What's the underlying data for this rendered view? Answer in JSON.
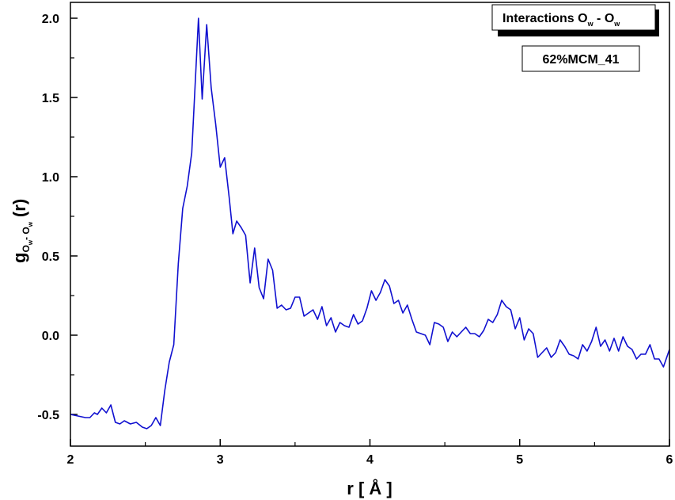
{
  "chart_data": {
    "type": "line",
    "xlabel": "r [ Å ]",
    "ylabel": {
      "main": "g",
      "sub1": "O",
      "subsub1": "w",
      "mid": "- O",
      "subsub2": "w",
      "tail": "(r)"
    },
    "xlim": [
      2,
      6
    ],
    "ylim": [
      -0.7,
      2.1
    ],
    "x_ticks": [
      "2",
      "3",
      "4",
      "5",
      "6"
    ],
    "y_ticks": [
      "-0.5",
      "0.0",
      "0.5",
      "1.0",
      "1.5",
      "2.0"
    ],
    "grid": false,
    "legend": {
      "position": "top-right",
      "title": {
        "main": "Interactions O",
        "sub1": "w",
        "mid": " - O",
        "sub2": "w"
      },
      "label": "62%MCM_41"
    },
    "series": [
      {
        "color": "#1010d0",
        "points": [
          [
            2.0,
            -0.5
          ],
          [
            2.05,
            -0.51
          ],
          [
            2.1,
            -0.52
          ],
          [
            2.13,
            -0.52
          ],
          [
            2.16,
            -0.49
          ],
          [
            2.18,
            -0.5
          ],
          [
            2.21,
            -0.46
          ],
          [
            2.24,
            -0.49
          ],
          [
            2.27,
            -0.44
          ],
          [
            2.3,
            -0.55
          ],
          [
            2.33,
            -0.56
          ],
          [
            2.36,
            -0.54
          ],
          [
            2.4,
            -0.56
          ],
          [
            2.44,
            -0.55
          ],
          [
            2.48,
            -0.58
          ],
          [
            2.51,
            -0.59
          ],
          [
            2.54,
            -0.57
          ],
          [
            2.57,
            -0.52
          ],
          [
            2.6,
            -0.57
          ],
          [
            2.63,
            -0.35
          ],
          [
            2.66,
            -0.17
          ],
          [
            2.69,
            -0.06
          ],
          [
            2.72,
            0.45
          ],
          [
            2.75,
            0.8
          ],
          [
            2.78,
            0.94
          ],
          [
            2.81,
            1.15
          ],
          [
            2.855,
            2.0
          ],
          [
            2.88,
            1.49
          ],
          [
            2.91,
            1.96
          ],
          [
            2.94,
            1.56
          ],
          [
            2.97,
            1.33
          ],
          [
            3.0,
            1.06
          ],
          [
            3.03,
            1.12
          ],
          [
            3.06,
            0.87
          ],
          [
            3.085,
            0.64
          ],
          [
            3.11,
            0.72
          ],
          [
            3.14,
            0.68
          ],
          [
            3.17,
            0.63
          ],
          [
            3.2,
            0.33
          ],
          [
            3.23,
            0.55
          ],
          [
            3.26,
            0.3
          ],
          [
            3.29,
            0.23
          ],
          [
            3.32,
            0.48
          ],
          [
            3.35,
            0.41
          ],
          [
            3.38,
            0.17
          ],
          [
            3.41,
            0.19
          ],
          [
            3.44,
            0.16
          ],
          [
            3.47,
            0.17
          ],
          [
            3.5,
            0.24
          ],
          [
            3.53,
            0.24
          ],
          [
            3.56,
            0.12
          ],
          [
            3.59,
            0.14
          ],
          [
            3.62,
            0.16
          ],
          [
            3.65,
            0.1
          ],
          [
            3.68,
            0.18
          ],
          [
            3.71,
            0.06
          ],
          [
            3.74,
            0.11
          ],
          [
            3.77,
            0.02
          ],
          [
            3.8,
            0.08
          ],
          [
            3.83,
            0.06
          ],
          [
            3.86,
            0.05
          ],
          [
            3.89,
            0.13
          ],
          [
            3.92,
            0.07
          ],
          [
            3.95,
            0.09
          ],
          [
            3.98,
            0.17
          ],
          [
            4.01,
            0.28
          ],
          [
            4.04,
            0.22
          ],
          [
            4.07,
            0.27
          ],
          [
            4.1,
            0.35
          ],
          [
            4.13,
            0.31
          ],
          [
            4.16,
            0.2
          ],
          [
            4.19,
            0.22
          ],
          [
            4.22,
            0.14
          ],
          [
            4.25,
            0.19
          ],
          [
            4.28,
            0.1
          ],
          [
            4.31,
            0.02
          ],
          [
            4.34,
            0.01
          ],
          [
            4.37,
            0.0
          ],
          [
            4.4,
            -0.06
          ],
          [
            4.43,
            0.08
          ],
          [
            4.46,
            0.07
          ],
          [
            4.49,
            0.05
          ],
          [
            4.52,
            -0.04
          ],
          [
            4.55,
            0.02
          ],
          [
            4.58,
            -0.01
          ],
          [
            4.61,
            0.02
          ],
          [
            4.64,
            0.05
          ],
          [
            4.67,
            0.01
          ],
          [
            4.7,
            0.01
          ],
          [
            4.73,
            -0.01
          ],
          [
            4.76,
            0.03
          ],
          [
            4.79,
            0.1
          ],
          [
            4.82,
            0.08
          ],
          [
            4.85,
            0.13
          ],
          [
            4.88,
            0.22
          ],
          [
            4.91,
            0.18
          ],
          [
            4.94,
            0.16
          ],
          [
            4.97,
            0.04
          ],
          [
            5.0,
            0.11
          ],
          [
            5.03,
            -0.03
          ],
          [
            5.06,
            0.04
          ],
          [
            5.09,
            0.01
          ],
          [
            5.12,
            -0.14
          ],
          [
            5.15,
            -0.11
          ],
          [
            5.18,
            -0.08
          ],
          [
            5.21,
            -0.14
          ],
          [
            5.24,
            -0.11
          ],
          [
            5.27,
            -0.03
          ],
          [
            5.3,
            -0.07
          ],
          [
            5.33,
            -0.12
          ],
          [
            5.36,
            -0.13
          ],
          [
            5.39,
            -0.15
          ],
          [
            5.42,
            -0.06
          ],
          [
            5.45,
            -0.1
          ],
          [
            5.48,
            -0.04
          ],
          [
            5.51,
            0.05
          ],
          [
            5.54,
            -0.07
          ],
          [
            5.57,
            -0.03
          ],
          [
            5.6,
            -0.1
          ],
          [
            5.63,
            -0.02
          ],
          [
            5.66,
            -0.1
          ],
          [
            5.69,
            -0.01
          ],
          [
            5.72,
            -0.07
          ],
          [
            5.75,
            -0.09
          ],
          [
            5.78,
            -0.15
          ],
          [
            5.81,
            -0.12
          ],
          [
            5.84,
            -0.12
          ],
          [
            5.87,
            -0.06
          ],
          [
            5.9,
            -0.15
          ],
          [
            5.93,
            -0.15
          ],
          [
            5.96,
            -0.2
          ],
          [
            6.0,
            -0.09
          ]
        ]
      }
    ]
  }
}
